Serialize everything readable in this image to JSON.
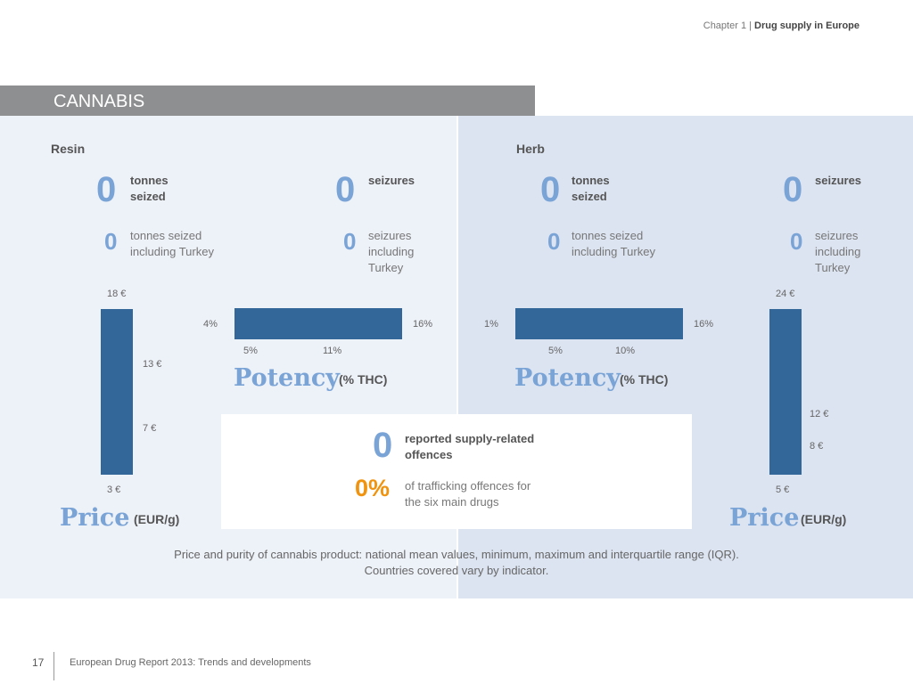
{
  "header": {
    "chapter": "Chapter 1",
    "section": "Drug supply in Europe"
  },
  "title": "CANNABIS",
  "resin": {
    "label": "Resin",
    "tonnes": {
      "value": "0",
      "label": "tonnes seized"
    },
    "seizures": {
      "value": "0",
      "label": "seizures"
    },
    "tonnes_turkey": {
      "value": "0",
      "label": "tonnes seized including Turkey"
    },
    "seizures_turkey": {
      "value": "0",
      "label": "seizures including Turkey"
    },
    "price": {
      "max": "18 €",
      "q3": "13 €",
      "q1": "7 €",
      "min": "3 €",
      "title": "Price",
      "unit": "(EUR/g)"
    },
    "potency": {
      "min": "4%",
      "max": "16%",
      "q1": "5%",
      "q3": "11%",
      "title": "Potency",
      "unit": "(% THC)"
    }
  },
  "herb": {
    "label": "Herb",
    "tonnes": {
      "value": "0",
      "label": "tonnes seized"
    },
    "seizures": {
      "value": "0",
      "label": "seizures"
    },
    "tonnes_turkey": {
      "value": "0",
      "label": "tonnes seized including Turkey"
    },
    "seizures_turkey": {
      "value": "0",
      "label": "seizures including Turkey"
    },
    "price": {
      "max": "24 €",
      "q3": "12 €",
      "q1": "8 €",
      "min": "5 €",
      "title": "Price",
      "unit": "(EUR/g)"
    },
    "potency": {
      "min": "1%",
      "max": "16%",
      "q1": "5%",
      "q3": "10%",
      "title": "Potency",
      "unit": "(% THC)"
    }
  },
  "offences": {
    "value": "0",
    "label": "reported supply-related offences",
    "pct": "0%",
    "pct_label": "of trafficking offences for the six main drugs"
  },
  "caption": {
    "line1": "Price and purity of cannabis product: national mean values, minimum, maximum and interquartile range (IQR).",
    "line2": "Countries covered vary by indicator."
  },
  "footer": {
    "page": "17",
    "text": "European Drug Report 2013: Trends and developments"
  },
  "colors": {
    "bar": "#336699",
    "accent": "#7aa3d6",
    "orange": "#f0930f"
  }
}
